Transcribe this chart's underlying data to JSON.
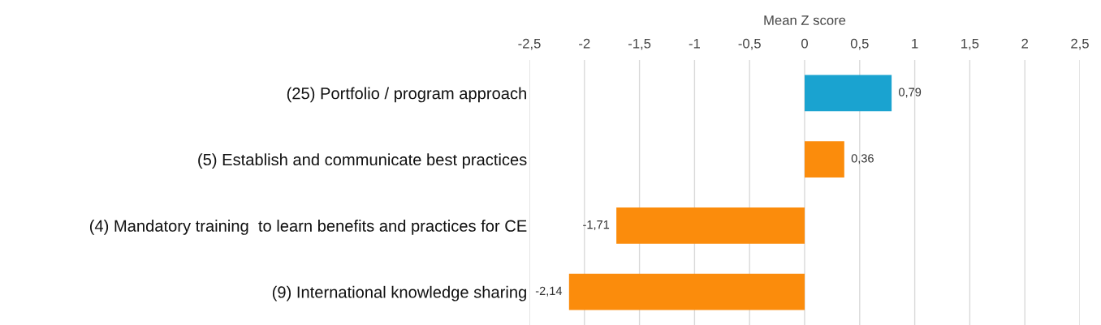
{
  "chart_data": {
    "type": "bar",
    "orientation": "horizontal",
    "xlabel": "Mean Z score",
    "categories": [
      "(25) Portfolio / program approach",
      "(5) Establish and communicate best practices",
      "(4) Mandatory training  to learn benefits and practices for CE",
      "(9) International knowledge sharing"
    ],
    "values": [
      0.79,
      0.36,
      -1.71,
      -2.14
    ],
    "colors": [
      "#1aa3d0",
      "#fb8c0c",
      "#fb8c0c",
      "#fb8c0c"
    ],
    "value_labels": [
      "0,79",
      "0,36",
      "-1,71",
      "-2,14"
    ],
    "xlim": [
      -2.5,
      2.5
    ],
    "xticks": [
      {
        "value": -2.5,
        "label": "-2,5"
      },
      {
        "value": -2,
        "label": "-2"
      },
      {
        "value": -1.5,
        "label": "-1,5"
      },
      {
        "value": -1,
        "label": "-1"
      },
      {
        "value": -0.5,
        "label": "-0,5"
      },
      {
        "value": 0,
        "label": "0"
      },
      {
        "value": 0.5,
        "label": "0,5"
      },
      {
        "value": 1,
        "label": "1"
      },
      {
        "value": 1.5,
        "label": "1,5"
      },
      {
        "value": 2,
        "label": "2"
      },
      {
        "value": 2.5,
        "label": "2,5"
      }
    ],
    "grid": "x"
  }
}
